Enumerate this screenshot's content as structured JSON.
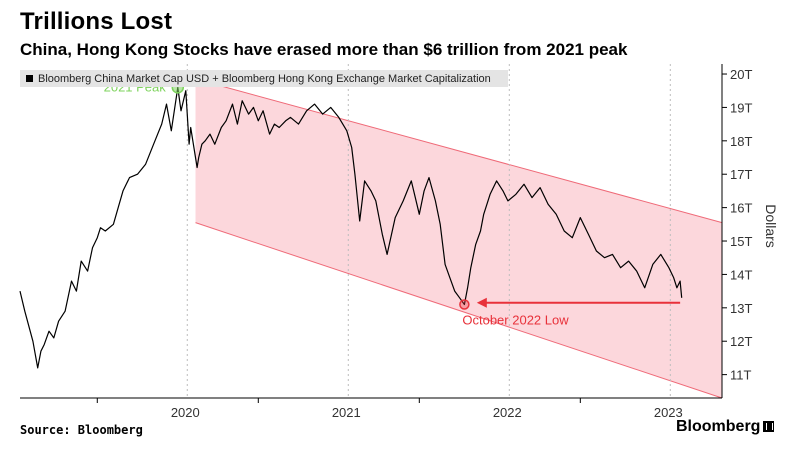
{
  "header": {
    "title": "Trillions Lost",
    "subtitle": "China, Hong Kong Stocks have erased more than $6 trillion from 2021 peak"
  },
  "footer": {
    "source": "Source: Bloomberg",
    "brand": "Bloomberg"
  },
  "colors": {
    "line": "#000000",
    "channel_fill": "#fcd7dc",
    "channel_edge": "#ef6a78",
    "peak_marker": "#7ed35d",
    "low_marker": "#e8313a",
    "legend_bg": "#e4e4e4"
  },
  "chart_data": {
    "type": "line",
    "title": "Trillions Lost",
    "ylabel": "Dollars",
    "ylim": [
      10.3,
      20.3
    ],
    "y_ticks": [
      11,
      12,
      13,
      14,
      15,
      16,
      17,
      18,
      19,
      20
    ],
    "y_tick_labels": [
      "11T",
      "12T",
      "13T",
      "14T",
      "15T",
      "16T",
      "17T",
      "18T",
      "19T",
      "20T"
    ],
    "xlim": [
      2019.52,
      2023.88
    ],
    "x_ticks": [
      2020,
      2021,
      2022,
      2023
    ],
    "x_tick_labels": [
      "2020",
      "2021",
      "2022",
      "2023"
    ],
    "x_tick_label_positions": [
      2020.0,
      2021.0,
      2022.0,
      2023.0
    ],
    "legend": [
      "Bloomberg China Market Cap USD + Bloomberg Hong Kong Exchange Market Capitalization"
    ],
    "series": [
      {
        "name": "Bloomberg China Market Cap USD + Bloomberg Hong Kong Exchange Market Capitalization",
        "x": [
          2019.52,
          2019.55,
          2019.6,
          2019.63,
          2019.65,
          2019.67,
          2019.7,
          2019.73,
          2019.76,
          2019.8,
          2019.84,
          2019.87,
          2019.9,
          2019.94,
          2019.97,
          2020.0,
          2020.02,
          2020.05,
          2020.1,
          2020.13,
          2020.16,
          2020.2,
          2020.25,
          2020.3,
          2020.35,
          2020.4,
          2020.43,
          2020.46,
          2020.5,
          2020.52,
          2020.55,
          2020.57,
          2020.58,
          2020.6,
          2020.62,
          2020.63,
          2020.65,
          2020.67,
          2020.7,
          2020.73,
          2020.77,
          2020.8,
          2020.84,
          2020.87,
          2020.9,
          2020.94,
          2020.97,
          2021.0,
          2021.03,
          2021.07,
          2021.1,
          2021.13,
          2021.17,
          2021.2,
          2021.25,
          2021.3,
          2021.35,
          2021.4,
          2021.45,
          2021.5,
          2021.55,
          2021.58,
          2021.6,
          2021.63,
          2021.66,
          2021.7,
          2021.73,
          2021.77,
          2021.8,
          2021.85,
          2021.9,
          2021.95,
          2022.0,
          2022.03,
          2022.06,
          2022.1,
          2022.13,
          2022.16,
          2022.19,
          2022.22,
          2022.25,
          2022.28,
          2022.3,
          2022.32,
          2022.35,
          2022.38,
          2022.4,
          2022.44,
          2022.48,
          2022.52,
          2022.55,
          2022.6,
          2022.65,
          2022.7,
          2022.75,
          2022.8,
          2022.85,
          2022.9,
          2022.95,
          2023.0,
          2023.05,
          2023.1,
          2023.15,
          2023.2,
          2023.25,
          2023.3,
          2023.35,
          2023.4,
          2023.45,
          2023.5,
          2023.55,
          2023.58,
          2023.6,
          2023.62,
          2023.63
        ],
        "y": [
          13.5,
          12.9,
          12.0,
          11.2,
          11.7,
          11.9,
          12.3,
          12.1,
          12.6,
          12.9,
          13.8,
          13.5,
          14.4,
          14.1,
          14.8,
          15.1,
          15.4,
          15.3,
          15.5,
          16.0,
          16.5,
          16.9,
          17.0,
          17.3,
          17.9,
          18.5,
          19.1,
          18.3,
          19.6,
          18.9,
          19.5,
          17.9,
          18.4,
          17.8,
          17.2,
          17.5,
          17.9,
          18.0,
          18.2,
          17.9,
          18.4,
          18.6,
          19.1,
          18.5,
          19.2,
          18.8,
          19.0,
          18.6,
          18.9,
          18.2,
          18.5,
          18.4,
          18.6,
          18.7,
          18.5,
          18.9,
          19.1,
          18.8,
          19.0,
          18.7,
          18.3,
          17.8,
          17.0,
          15.6,
          16.8,
          16.5,
          16.2,
          15.2,
          14.6,
          15.7,
          16.2,
          16.8,
          15.8,
          16.5,
          16.9,
          16.2,
          15.5,
          14.3,
          13.9,
          13.5,
          13.3,
          13.1,
          13.6,
          14.2,
          14.9,
          15.3,
          15.8,
          16.4,
          16.8,
          16.5,
          16.2,
          16.4,
          16.7,
          16.3,
          16.6,
          16.1,
          15.8,
          15.3,
          15.1,
          15.7,
          15.2,
          14.7,
          14.5,
          14.6,
          14.2,
          14.4,
          14.1,
          13.6,
          14.3,
          14.6,
          14.2,
          13.9,
          13.6,
          13.8,
          13.3
        ]
      }
    ],
    "annotations": [
      {
        "label": "2021 Peak",
        "x": 2020.5,
        "y": 19.6,
        "color": "#7ed35d"
      },
      {
        "label": "October 2022 Low",
        "x": 2022.28,
        "y": 13.1,
        "color": "#e8313a"
      }
    ],
    "arrow": {
      "from_x": 2023.62,
      "to_x": 2022.32,
      "y": 13.15
    },
    "channel": {
      "x_start": 2020.61,
      "x_end": 2023.88,
      "upper_start": 19.85,
      "upper_end": 15.55,
      "lower_start": 15.55,
      "lower_end": 10.3
    }
  }
}
